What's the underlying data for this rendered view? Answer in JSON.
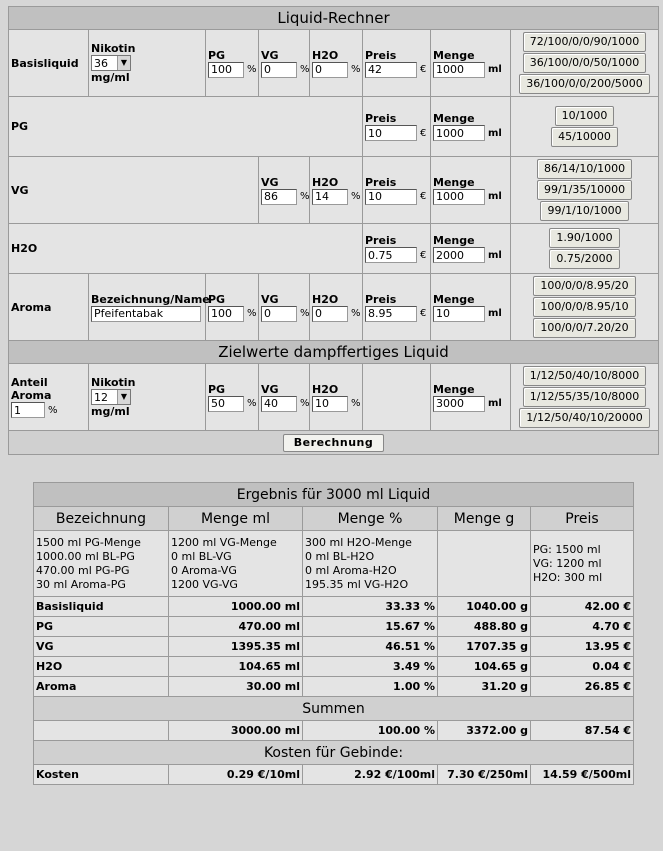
{
  "title": "Liquid-Rechner",
  "base": {
    "row_label": "Basisliquid",
    "nikotin_label": "Nikotin",
    "nikotin_value": "36",
    "nikotin_unit": "mg/ml",
    "pg_label": "PG",
    "pg_value": "100",
    "vg_label": "VG",
    "vg_value": "0",
    "h2o_label": "H2O",
    "h2o_value": "0",
    "preis_label": "Preis",
    "preis_value": "42",
    "menge_label": "Menge",
    "menge_value": "1000",
    "presets": [
      "72/100/0/0/90/1000",
      "36/100/0/0/50/1000",
      "36/100/0/0/200/5000"
    ]
  },
  "pg": {
    "row_label": "PG",
    "preis_label": "Preis",
    "preis_value": "10",
    "menge_label": "Menge",
    "menge_value": "1000",
    "presets": [
      "10/1000",
      "45/10000"
    ]
  },
  "vg": {
    "row_label": "VG",
    "vg_label": "VG",
    "vg_value": "86",
    "h2o_label": "H2O",
    "h2o_value": "14",
    "preis_label": "Preis",
    "preis_value": "10",
    "menge_label": "Menge",
    "menge_value": "1000",
    "presets": [
      "86/14/10/1000",
      "99/1/35/10000",
      "99/1/10/1000"
    ]
  },
  "h2o": {
    "row_label": "H2O",
    "preis_label": "Preis",
    "preis_value": "0.75",
    "menge_label": "Menge",
    "menge_value": "2000",
    "presets": [
      "1.90/1000",
      "0.75/2000"
    ]
  },
  "aroma": {
    "row_label": "Aroma",
    "name_label": "Bezeichnung/Name",
    "name_value": "Pfeifentabak",
    "pg_label": "PG",
    "pg_value": "100",
    "vg_label": "VG",
    "vg_value": "0",
    "h2o_label": "H2O",
    "h2o_value": "0",
    "preis_label": "Preis",
    "preis_value": "8.95",
    "menge_label": "Menge",
    "menge_value": "10",
    "presets": [
      "100/0/0/8.95/20",
      "100/0/0/8.95/10",
      "100/0/0/7.20/20"
    ]
  },
  "target": {
    "header": "Zielwerte dampffertiges Liquid",
    "anteil_label": "Anteil Aroma",
    "anteil_value": "1",
    "nikotin_label": "Nikotin",
    "nikotin_value": "12",
    "nikotin_unit": "mg/ml",
    "pg_label": "PG",
    "pg_value": "50",
    "vg_label": "VG",
    "vg_value": "40",
    "h2o_label": "H2O",
    "h2o_value": "10",
    "menge_label": "Menge",
    "menge_value": "3000",
    "presets": [
      "1/12/50/40/10/8000",
      "1/12/55/35/10/8000",
      "1/12/50/40/10/20000"
    ]
  },
  "units": {
    "percent": "%",
    "euro": "€",
    "ml": "ml"
  },
  "calc_button": "Berechnung",
  "result": {
    "title": "Ergebnis für 3000 ml Liquid",
    "columns": [
      "Bezeichnung",
      "Menge ml",
      "Menge %",
      "Menge g",
      "Preis"
    ],
    "detail": {
      "c1": [
        "1500 ml PG-Menge",
        "1000.00 ml BL-PG",
        "470.00 ml PG-PG",
        "30 ml Aroma-PG"
      ],
      "c2": [
        "1200 ml VG-Menge",
        "0 ml BL-VG",
        "0 Aroma-VG",
        "1200 VG-VG"
      ],
      "c3": [
        "300 ml H2O-Menge",
        "0 ml BL-H2O",
        "0 ml Aroma-H2O",
        "195.35 ml VG-H2O"
      ],
      "c5": [
        "PG: 1500 ml",
        "VG: 1200 ml",
        "H2O: 300 ml"
      ]
    },
    "rows": [
      {
        "name": "Basisliquid",
        "ml": "1000.00 ml",
        "pct": "33.33 %",
        "g": "1040.00 g",
        "price": "42.00 €"
      },
      {
        "name": "PG",
        "ml": "470.00 ml",
        "pct": "15.67 %",
        "g": "488.80 g",
        "price": "4.70 €"
      },
      {
        "name": "VG",
        "ml": "1395.35 ml",
        "pct": "46.51 %",
        "g": "1707.35 g",
        "price": "13.95 €"
      },
      {
        "name": "H2O",
        "ml": "104.65 ml",
        "pct": "3.49 %",
        "g": "104.65 g",
        "price": "0.04 €"
      },
      {
        "name": "Aroma",
        "ml": "30.00 ml",
        "pct": "1.00 %",
        "g": "31.20 g",
        "price": "26.85 €"
      }
    ],
    "sums_header": "Summen",
    "sums": {
      "ml": "3000.00 ml",
      "pct": "100.00 %",
      "g": "3372.00 g",
      "price": "87.54 €"
    },
    "costs_header": "Kosten für Gebinde:",
    "costs": {
      "label": "Kosten",
      "c1": "0.29 €/10ml",
      "c2": "2.92 €/100ml",
      "c3": "7.30 €/250ml",
      "c4": "14.59 €/500ml"
    }
  }
}
